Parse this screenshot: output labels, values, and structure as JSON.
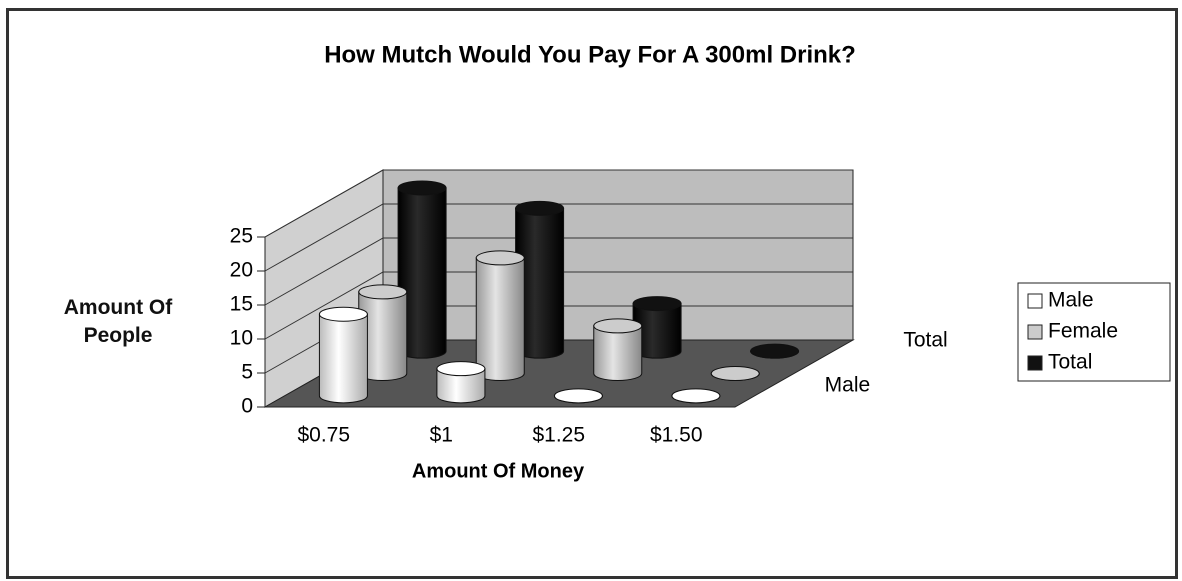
{
  "chart_data": {
    "type": "bar3d_cylinder",
    "title": "How Mutch Would You Pay For A 300ml Drink?",
    "x_label": "Amount Of Money",
    "y_label": "Amount Of People",
    "categories": [
      "$0.75",
      "$1",
      "$1.25",
      "$1.50"
    ],
    "depth_categories": [
      "Male",
      null,
      "Total"
    ],
    "series": [
      {
        "name": "Male",
        "color": "#ffffff",
        "values": [
          12,
          4,
          0,
          0
        ]
      },
      {
        "name": "Female",
        "color": "#cccccc",
        "values": [
          12,
          17,
          7,
          0
        ]
      },
      {
        "name": "Total",
        "color": "#111111",
        "values": [
          24,
          21,
          7,
          0
        ]
      }
    ],
    "ylim": [
      0,
      25
    ],
    "yticks": [
      0,
      5,
      10,
      15,
      20,
      25
    ],
    "grid": true,
    "legend": "right"
  }
}
